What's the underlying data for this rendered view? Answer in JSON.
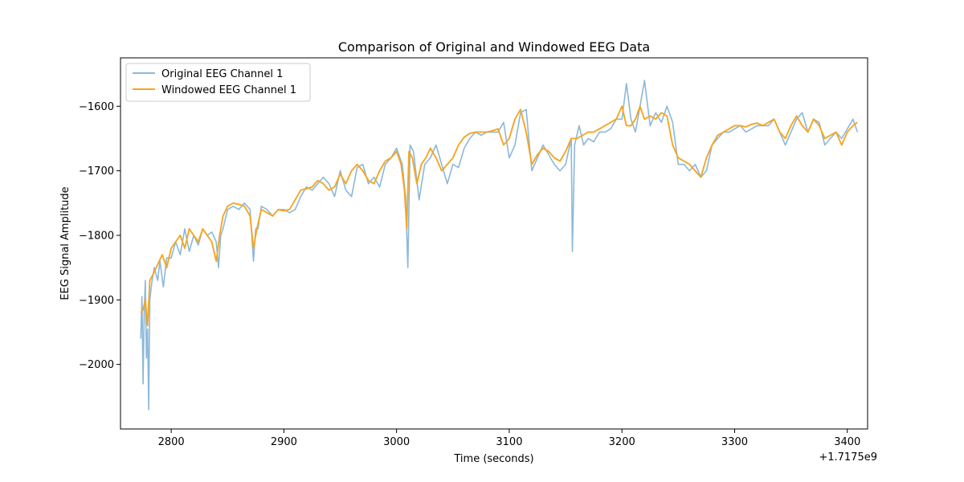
{
  "chart_data": {
    "type": "line",
    "title": "Comparison of Original and Windowed EEG Data",
    "xlabel": "Time (seconds)",
    "ylabel": "EEG Signal Amplitude",
    "x_offset_label": "+1.7175e9",
    "xlim": [
      2755,
      3418
    ],
    "ylim": [
      -2100,
      -1525
    ],
    "xticks": [
      2800,
      2900,
      3000,
      3100,
      3200,
      3300,
      3400
    ],
    "xtick_labels": [
      "2800",
      "2900",
      "3000",
      "3100",
      "3200",
      "3300",
      "3400"
    ],
    "yticks": [
      -2000,
      -1900,
      -1800,
      -1700,
      -1600
    ],
    "ytick_labels": [
      "−2000",
      "−1900",
      "−1800",
      "−1700",
      "−1600"
    ],
    "grid": false,
    "legend_position": "upper-left",
    "colors": {
      "original": "#8cb8d9",
      "windowed": "#f5a623"
    },
    "series": [
      {
        "name": "Original EEG Channel 1",
        "color": "#8cb8d9",
        "x": [
          2773,
          2774,
          2775,
          2776,
          2777,
          2778,
          2779,
          2780,
          2781,
          2783,
          2785,
          2788,
          2790,
          2793,
          2796,
          2800,
          2804,
          2808,
          2812,
          2816,
          2820,
          2824,
          2828,
          2832,
          2836,
          2840,
          2842,
          2844,
          2846,
          2850,
          2855,
          2860,
          2865,
          2870,
          2873,
          2875,
          2877,
          2880,
          2885,
          2890,
          2895,
          2900,
          2905,
          2910,
          2915,
          2920,
          2925,
          2930,
          2935,
          2940,
          2945,
          2950,
          2955,
          2960,
          2965,
          2970,
          2975,
          2980,
          2985,
          2990,
          2995,
          3000,
          3005,
          3008,
          3010,
          3012,
          3015,
          3020,
          3025,
          3030,
          3035,
          3040,
          3045,
          3050,
          3055,
          3060,
          3065,
          3070,
          3075,
          3080,
          3085,
          3090,
          3095,
          3100,
          3105,
          3110,
          3115,
          3120,
          3125,
          3130,
          3135,
          3140,
          3145,
          3150,
          3155,
          3156,
          3158,
          3162,
          3166,
          3170,
          3175,
          3180,
          3185,
          3190,
          3195,
          3200,
          3204,
          3208,
          3212,
          3216,
          3220,
          3225,
          3230,
          3235,
          3240,
          3245,
          3250,
          3255,
          3260,
          3265,
          3270,
          3275,
          3280,
          3285,
          3290,
          3295,
          3300,
          3305,
          3310,
          3315,
          3320,
          3325,
          3330,
          3335,
          3340,
          3345,
          3350,
          3355,
          3360,
          3365,
          3370,
          3375,
          3380,
          3385,
          3390,
          3395,
          3400,
          3405,
          3409
        ],
        "y": [
          -1960,
          -1895,
          -2030,
          -1920,
          -1870,
          -1990,
          -1945,
          -2070,
          -1900,
          -1870,
          -1850,
          -1870,
          -1840,
          -1880,
          -1835,
          -1835,
          -1810,
          -1830,
          -1790,
          -1825,
          -1800,
          -1815,
          -1790,
          -1800,
          -1795,
          -1810,
          -1850,
          -1800,
          -1790,
          -1760,
          -1755,
          -1760,
          -1750,
          -1760,
          -1840,
          -1790,
          -1790,
          -1755,
          -1760,
          -1770,
          -1760,
          -1760,
          -1765,
          -1760,
          -1740,
          -1725,
          -1730,
          -1720,
          -1710,
          -1720,
          -1740,
          -1700,
          -1730,
          -1740,
          -1695,
          -1690,
          -1720,
          -1710,
          -1725,
          -1690,
          -1680,
          -1665,
          -1690,
          -1740,
          -1850,
          -1660,
          -1670,
          -1745,
          -1690,
          -1680,
          -1660,
          -1690,
          -1720,
          -1690,
          -1695,
          -1665,
          -1650,
          -1640,
          -1645,
          -1640,
          -1640,
          -1640,
          -1625,
          -1680,
          -1660,
          -1610,
          -1605,
          -1700,
          -1680,
          -1660,
          -1675,
          -1690,
          -1700,
          -1690,
          -1650,
          -1825,
          -1660,
          -1630,
          -1660,
          -1650,
          -1655,
          -1640,
          -1640,
          -1635,
          -1620,
          -1620,
          -1565,
          -1620,
          -1640,
          -1600,
          -1560,
          -1630,
          -1610,
          -1625,
          -1600,
          -1625,
          -1690,
          -1690,
          -1700,
          -1690,
          -1710,
          -1700,
          -1660,
          -1650,
          -1640,
          -1640,
          -1635,
          -1630,
          -1640,
          -1635,
          -1630,
          -1630,
          -1630,
          -1620,
          -1640,
          -1660,
          -1640,
          -1620,
          -1610,
          -1640,
          -1620,
          -1625,
          -1660,
          -1650,
          -1640,
          -1650,
          -1635,
          -1620,
          -1640
        ]
      },
      {
        "name": "Windowed EEG Channel 1",
        "color": "#f5a623",
        "x": [
          2773,
          2775,
          2777,
          2779,
          2781,
          2784,
          2788,
          2792,
          2796,
          2800,
          2804,
          2808,
          2812,
          2816,
          2820,
          2824,
          2828,
          2832,
          2836,
          2840,
          2843,
          2846,
          2850,
          2855,
          2860,
          2865,
          2870,
          2873,
          2876,
          2880,
          2885,
          2890,
          2895,
          2900,
          2905,
          2910,
          2915,
          2920,
          2925,
          2930,
          2935,
          2940,
          2945,
          2950,
          2955,
          2960,
          2965,
          2970,
          2975,
          2980,
          2985,
          2990,
          2995,
          3000,
          3004,
          3007,
          3009,
          3011,
          3014,
          3018,
          3022,
          3026,
          3030,
          3035,
          3040,
          3045,
          3050,
          3055,
          3060,
          3065,
          3070,
          3075,
          3080,
          3085,
          3090,
          3095,
          3100,
          3105,
          3110,
          3115,
          3120,
          3125,
          3130,
          3135,
          3140,
          3145,
          3150,
          3155,
          3160,
          3165,
          3170,
          3175,
          3180,
          3185,
          3190,
          3195,
          3200,
          3204,
          3208,
          3212,
          3216,
          3220,
          3225,
          3230,
          3235,
          3240,
          3245,
          3250,
          3255,
          3260,
          3265,
          3270,
          3275,
          3280,
          3285,
          3290,
          3295,
          3300,
          3305,
          3310,
          3315,
          3320,
          3325,
          3330,
          3335,
          3340,
          3345,
          3350,
          3355,
          3360,
          3365,
          3370,
          3375,
          3380,
          3385,
          3390,
          3395,
          3400,
          3405,
          3409
        ],
        "y": [
          -1920,
          -1915,
          -1900,
          -1940,
          -1870,
          -1860,
          -1845,
          -1830,
          -1850,
          -1820,
          -1810,
          -1800,
          -1820,
          -1790,
          -1800,
          -1810,
          -1790,
          -1800,
          -1810,
          -1840,
          -1800,
          -1770,
          -1755,
          -1750,
          -1752,
          -1755,
          -1770,
          -1820,
          -1790,
          -1760,
          -1765,
          -1770,
          -1760,
          -1762,
          -1760,
          -1745,
          -1730,
          -1728,
          -1725,
          -1715,
          -1720,
          -1730,
          -1725,
          -1705,
          -1720,
          -1700,
          -1690,
          -1700,
          -1715,
          -1720,
          -1700,
          -1685,
          -1680,
          -1670,
          -1690,
          -1730,
          -1790,
          -1670,
          -1680,
          -1720,
          -1690,
          -1680,
          -1665,
          -1680,
          -1700,
          -1690,
          -1680,
          -1660,
          -1648,
          -1642,
          -1640,
          -1640,
          -1640,
          -1638,
          -1635,
          -1660,
          -1650,
          -1620,
          -1605,
          -1640,
          -1690,
          -1675,
          -1665,
          -1670,
          -1680,
          -1685,
          -1670,
          -1650,
          -1650,
          -1645,
          -1640,
          -1640,
          -1635,
          -1630,
          -1625,
          -1620,
          -1600,
          -1630,
          -1630,
          -1620,
          -1600,
          -1620,
          -1615,
          -1620,
          -1610,
          -1615,
          -1660,
          -1680,
          -1685,
          -1690,
          -1700,
          -1710,
          -1680,
          -1660,
          -1645,
          -1640,
          -1635,
          -1630,
          -1630,
          -1632,
          -1628,
          -1626,
          -1630,
          -1625,
          -1620,
          -1640,
          -1650,
          -1630,
          -1615,
          -1630,
          -1640,
          -1620,
          -1630,
          -1650,
          -1645,
          -1640,
          -1660,
          -1640,
          -1630,
          -1625
        ]
      }
    ]
  }
}
